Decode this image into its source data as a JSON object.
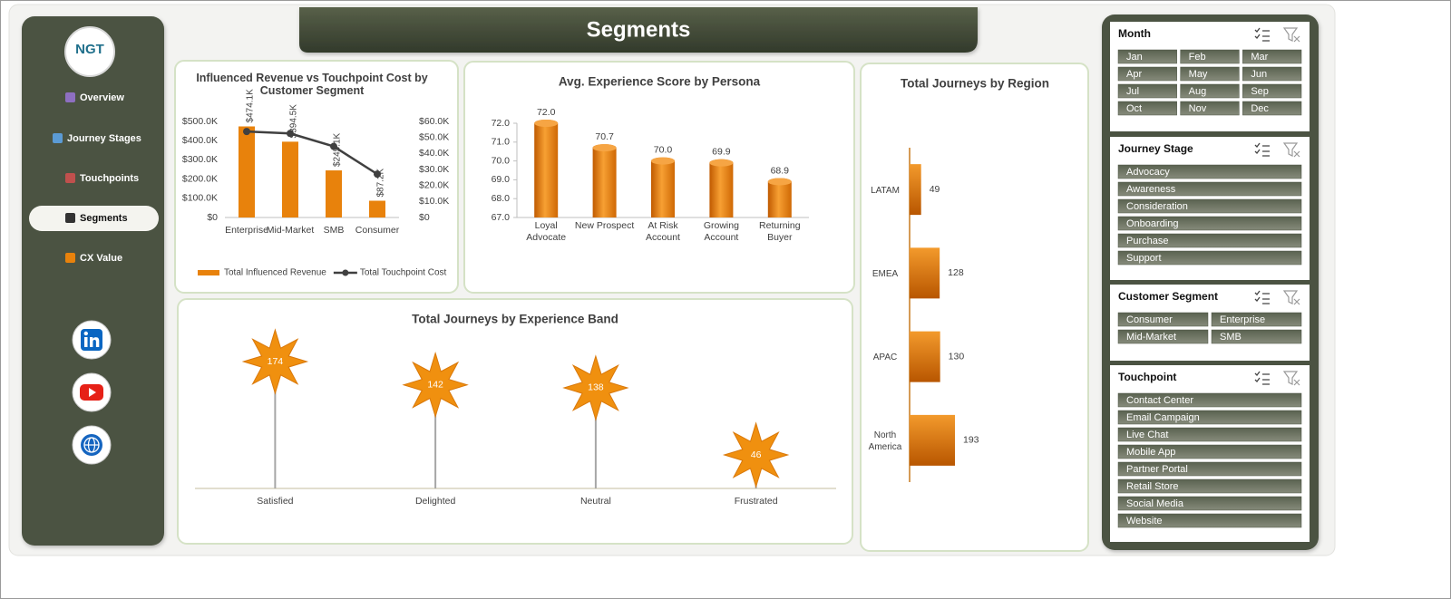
{
  "header": {
    "title": "Segments"
  },
  "nav": {
    "logo": "NGT",
    "items": [
      "Overview",
      "Journey Stages",
      "Touchpoints",
      "Segments",
      "CX Value"
    ],
    "active": 3
  },
  "chart_data": [
    {
      "type": "combo",
      "title": "Influenced Revenue vs Touchpoint Cost by Customer Segment",
      "categories": [
        "Enterprise",
        "Mid-Market",
        "SMB",
        "Consumer"
      ],
      "series": [
        {
          "name": "Total Influenced Revenue",
          "type": "bar",
          "color": "#e8820c",
          "values": [
            474100,
            394500,
            245100,
            87200
          ],
          "value_labels": [
            "$474.1K",
            "$394.5K",
            "$245.1K",
            "$87.2K"
          ]
        },
        {
          "name": "Total Touchpoint Cost",
          "type": "line",
          "axis": "y2",
          "color": "#404040",
          "values": [
            53700,
            52500,
            44400,
            27100
          ]
        }
      ],
      "ylim": [
        0,
        500000
      ],
      "yticks": [
        {
          "value": 0,
          "label": "$0"
        },
        {
          "value": 100000,
          "label": "$100.0K"
        },
        {
          "value": 200000,
          "label": "$200.0K"
        },
        {
          "value": 300000,
          "label": "$300.0K"
        },
        {
          "value": 400000,
          "label": "$400.0K"
        },
        {
          "value": 500000,
          "label": "$500.0K"
        }
      ],
      "y2lim": [
        0,
        60000
      ],
      "y2ticks": [
        {
          "value": 0,
          "label": "$0"
        },
        {
          "value": 10000,
          "label": "$10.0K"
        },
        {
          "value": 20000,
          "label": "$20.0K"
        },
        {
          "value": 30000,
          "label": "$30.0K"
        },
        {
          "value": 40000,
          "label": "$40.0K"
        },
        {
          "value": 50000,
          "label": "$50.0K"
        },
        {
          "value": 60000,
          "label": "$60.0K"
        }
      ],
      "legend": "bottom"
    },
    {
      "type": "bar",
      "title": "Avg. Experience Score by Persona",
      "categories": [
        "Loyal Advocate",
        "New Prospect",
        "At Risk Account",
        "Growing Account",
        "Returning Buyer"
      ],
      "values": [
        72.0,
        70.7,
        70.0,
        69.9,
        68.9
      ],
      "value_labels": [
        "72.0",
        "70.7",
        "70.0",
        "69.9",
        "68.9"
      ],
      "color": "#e8820c",
      "ylim": [
        67,
        72
      ],
      "yticks": [
        {
          "value": 67,
          "label": "67.0"
        },
        {
          "value": 68,
          "label": "68.0"
        },
        {
          "value": 69,
          "label": "69.0"
        },
        {
          "value": 70,
          "label": "70.0"
        },
        {
          "value": 71,
          "label": "71.0"
        },
        {
          "value": 72,
          "label": "72.0"
        }
      ]
    },
    {
      "type": "hbar",
      "title": "Total Journeys by Region",
      "categories": [
        "LATAM",
        "EMEA",
        "APAC",
        "North America"
      ],
      "values": [
        49,
        128,
        130,
        193
      ],
      "color": "#e8820c"
    },
    {
      "type": "lollipop",
      "title": "Total Journeys by Experience Band",
      "categories": [
        "Satisfied",
        "Delighted",
        "Neutral",
        "Frustrated"
      ],
      "values": [
        174,
        142,
        138,
        46
      ],
      "color": "#f0900f"
    }
  ],
  "slicers": [
    {
      "title": "Month",
      "items": [
        "Jan",
        "Feb",
        "Mar",
        "Apr",
        "May",
        "Jun",
        "Jul",
        "Aug",
        "Sep",
        "Oct",
        "Nov",
        "Dec"
      ]
    },
    {
      "title": "Journey Stage",
      "items": [
        "Advocacy",
        "Awareness",
        "Consideration",
        "Onboarding",
        "Purchase",
        "Support"
      ]
    },
    {
      "title": "Customer Segment",
      "items": [
        "Consumer",
        "Enterprise",
        "Mid-Market",
        "SMB"
      ]
    },
    {
      "title": "Touchpoint",
      "items": [
        "Contact Center",
        "Email Campaign",
        "Live Chat",
        "Mobile App",
        "Partner Portal",
        "Retail Store",
        "Social Media",
        "Website"
      ]
    }
  ]
}
